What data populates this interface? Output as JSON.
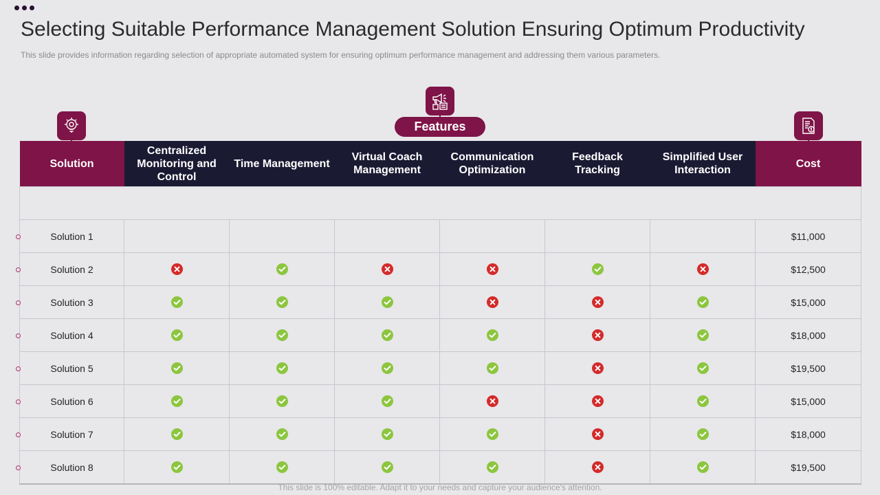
{
  "title": "Selecting Suitable Performance Management Solution Ensuring Optimum Productivity",
  "subtitle": "This slide provides information regarding selection of appropriate automated system for ensuring optimum performance management and addressing them various parameters.",
  "features_label": "Features",
  "icons": {
    "solution": "lightbulb-gear-icon",
    "features": "megaphone-checklist-icon",
    "cost": "invoice-dollar-icon"
  },
  "colors": {
    "accent": "#7e1447",
    "header_dark": "#1b1a33",
    "yes": "#8cc63f",
    "no": "#d42a2a",
    "background": "#e8e7ea"
  },
  "table": {
    "solution_header": "Solution",
    "cost_header": "Cost",
    "feature_headers": [
      "Centralized Monitoring and Control",
      "Time Management",
      "Virtual Coach Management",
      "Communication Optimization",
      "Feedback Tracking",
      "Simplified User Interaction"
    ],
    "rows": [
      {
        "name": "Solution 1",
        "features": [
          null,
          null,
          null,
          null,
          null,
          null
        ],
        "cost": "$11,000"
      },
      {
        "name": "Solution 2",
        "features": [
          false,
          true,
          false,
          false,
          true,
          false
        ],
        "cost": "$12,500"
      },
      {
        "name": "Solution 3",
        "features": [
          true,
          true,
          true,
          false,
          false,
          true
        ],
        "cost": "$15,000"
      },
      {
        "name": "Solution 4",
        "features": [
          true,
          true,
          true,
          true,
          false,
          true
        ],
        "cost": "$18,000"
      },
      {
        "name": "Solution 5",
        "features": [
          true,
          true,
          true,
          true,
          false,
          true
        ],
        "cost": "$19,500"
      },
      {
        "name": "Solution 6",
        "features": [
          true,
          true,
          true,
          false,
          false,
          true
        ],
        "cost": "$15,000"
      },
      {
        "name": "Solution 7",
        "features": [
          true,
          true,
          true,
          true,
          false,
          true
        ],
        "cost": "$18,000"
      },
      {
        "name": "Solution 8",
        "features": [
          true,
          true,
          true,
          true,
          false,
          true
        ],
        "cost": "$19,500"
      }
    ]
  },
  "footer": "This slide is 100% editable. Adapt it to your needs and capture your audience's attention."
}
